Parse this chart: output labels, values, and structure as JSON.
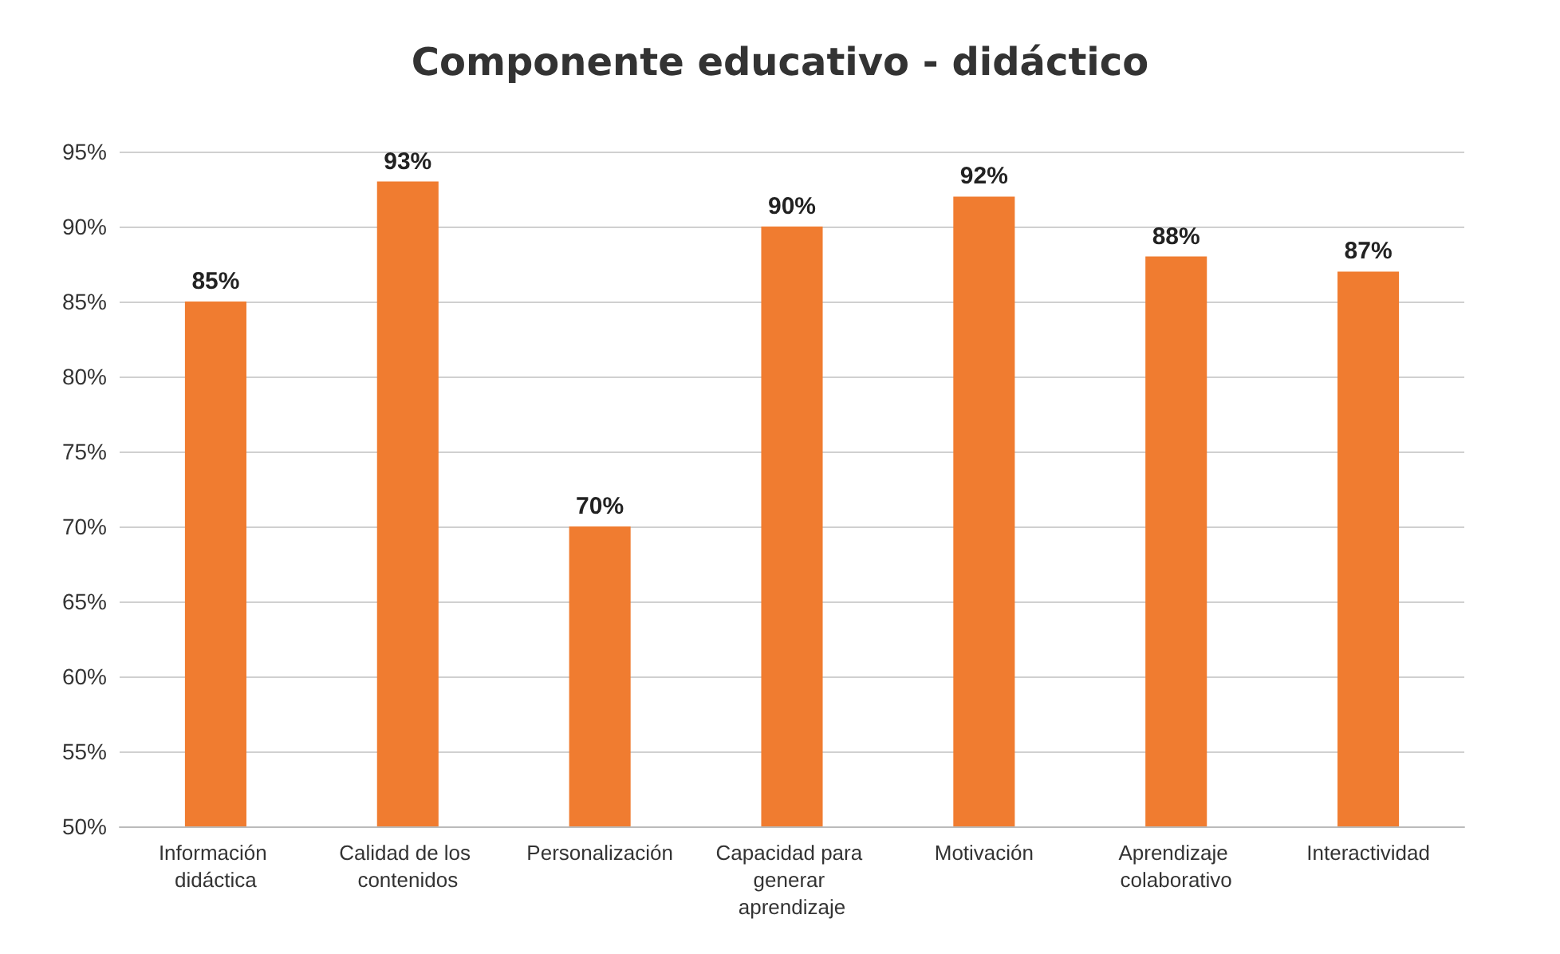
{
  "chart_data": {
    "type": "bar",
    "title": "Componente educativo - didáctico",
    "categories": [
      "Información didáctica",
      "Calidad de los contenidos",
      "Personalización",
      "Capacidad para generar aprendizaje",
      "Motivación",
      "Aprendizaje colaborativo",
      "Interactividad"
    ],
    "values": [
      85,
      93,
      70,
      90,
      92,
      88,
      87
    ],
    "value_labels": [
      "85%",
      "93%",
      "70%",
      "90%",
      "92%",
      "88%",
      "87%"
    ],
    "color": "#f07c30",
    "ylim": [
      50,
      95
    ],
    "yticks": [
      {
        "value": 50,
        "label": "50%"
      },
      {
        "value": 55,
        "label": "55%"
      },
      {
        "value": 60,
        "label": "60%"
      },
      {
        "value": 65,
        "label": "65%"
      },
      {
        "value": 70,
        "label": "70%"
      },
      {
        "value": 75,
        "label": "75%"
      },
      {
        "value": 80,
        "label": "80%"
      },
      {
        "value": 85,
        "label": "85%"
      },
      {
        "value": 90,
        "label": "90%"
      },
      {
        "value": 95,
        "label": "95%"
      }
    ],
    "grid": "y"
  }
}
